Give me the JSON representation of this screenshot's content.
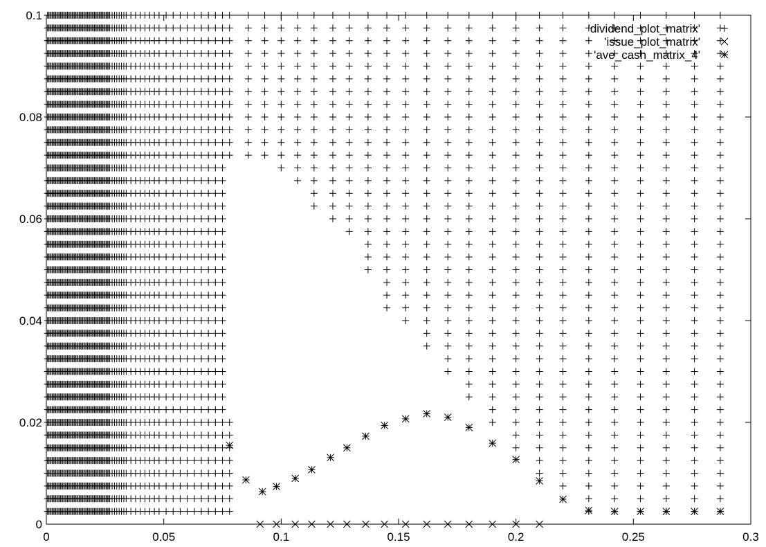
{
  "chart_data": {
    "type": "scatter",
    "title": "",
    "xlabel": "",
    "ylabel": "",
    "xlim": [
      0,
      0.3
    ],
    "ylim": [
      0,
      0.1
    ],
    "grid": false,
    "legend_position": "top-right",
    "x_ticks": [
      "0",
      "0.05",
      "0.1",
      "0.15",
      "0.2",
      "0.25",
      "0.3"
    ],
    "y_ticks": [
      "0",
      "0.02",
      "0.04",
      "0.06",
      "0.08",
      "0.1"
    ],
    "series": [
      {
        "name": "'dividend_plot_matrix'",
        "marker": "plus",
        "grid_y_values": [
          0.0025,
          0.005,
          0.0075,
          0.01,
          0.0125,
          0.015,
          0.0175,
          0.02,
          0.0225,
          0.025,
          0.0275,
          0.03,
          0.0325,
          0.035,
          0.0375,
          0.04,
          0.0425,
          0.045,
          0.0475,
          0.05,
          0.0525,
          0.055,
          0.0575,
          0.06,
          0.0625,
          0.065,
          0.0675,
          0.07,
          0.0725,
          0.075,
          0.0775,
          0.08,
          0.0825,
          0.085,
          0.0875,
          0.09,
          0.0925,
          0.095,
          0.0975,
          0.1
        ],
        "dense_x_values": [
          0.0005,
          0.001,
          0.0015,
          0.002,
          0.0025,
          0.003,
          0.0035,
          0.004,
          0.0045,
          0.005,
          0.0055,
          0.006,
          0.0065,
          0.007,
          0.0075,
          0.008,
          0.0085,
          0.009,
          0.0095,
          0.01,
          0.0105,
          0.011,
          0.0115,
          0.012,
          0.0125,
          0.013,
          0.0135,
          0.014,
          0.0145,
          0.015,
          0.0155,
          0.016,
          0.0165,
          0.017,
          0.0175,
          0.018,
          0.0185,
          0.019,
          0.0195,
          0.02,
          0.0205,
          0.021,
          0.0215,
          0.022,
          0.0225,
          0.023,
          0.0235,
          0.024,
          0.0245,
          0.025,
          0.0255,
          0.026,
          0.0265,
          0.027,
          0.028,
          0.029,
          0.03,
          0.031,
          0.032,
          0.033,
          0.034,
          0.036,
          0.038,
          0.04,
          0.042,
          0.044,
          0.046,
          0.048,
          0.051,
          0.054,
          0.057,
          0.06,
          0.063,
          0.066,
          0.069,
          0.072,
          0.075
        ],
        "columns": [
          {
            "x": 0.078,
            "y_min": 0.0025,
            "y_max": 0.02
          },
          {
            "x": 0.078,
            "y_min": 0.0725,
            "y_max": 0.1
          },
          {
            "x": 0.086,
            "y_min": 0.0725,
            "y_max": 0.1
          },
          {
            "x": 0.093,
            "y_min": 0.0725,
            "y_max": 0.1
          },
          {
            "x": 0.1,
            "y_min": 0.07,
            "y_max": 0.1
          },
          {
            "x": 0.107,
            "y_min": 0.0675,
            "y_max": 0.1
          },
          {
            "x": 0.114,
            "y_min": 0.0625,
            "y_max": 0.1
          },
          {
            "x": 0.122,
            "y_min": 0.06,
            "y_max": 0.1
          },
          {
            "x": 0.129,
            "y_min": 0.0575,
            "y_max": 0.1
          },
          {
            "x": 0.137,
            "y_min": 0.05,
            "y_max": 0.1
          },
          {
            "x": 0.145,
            "y_min": 0.0425,
            "y_max": 0.1
          },
          {
            "x": 0.153,
            "y_min": 0.04,
            "y_max": 0.1
          },
          {
            "x": 0.162,
            "y_min": 0.035,
            "y_max": 0.1
          },
          {
            "x": 0.171,
            "y_min": 0.03,
            "y_max": 0.1
          },
          {
            "x": 0.18,
            "y_min": 0.025,
            "y_max": 0.1
          },
          {
            "x": 0.19,
            "y_min": 0.02,
            "y_max": 0.1
          },
          {
            "x": 0.2,
            "y_min": 0.015,
            "y_max": 0.1
          },
          {
            "x": 0.21,
            "y_min": 0.01,
            "y_max": 0.1
          },
          {
            "x": 0.22,
            "y_min": 0.0075,
            "y_max": 0.1
          },
          {
            "x": 0.231,
            "y_min": 0.0025,
            "y_max": 0.1
          },
          {
            "x": 0.242,
            "y_min": 0.0025,
            "y_max": 0.1
          },
          {
            "x": 0.253,
            "y_min": 0.0025,
            "y_max": 0.1
          },
          {
            "x": 0.264,
            "y_min": 0.0025,
            "y_max": 0.1
          },
          {
            "x": 0.276,
            "y_min": 0.0025,
            "y_max": 0.1
          },
          {
            "x": 0.287,
            "y_min": 0.0025,
            "y_max": 0.1
          }
        ]
      },
      {
        "name": "'issue_plot_matrix'",
        "marker": "cross",
        "x": [
          0.091,
          0.098,
          0.106,
          0.113,
          0.121,
          0.128,
          0.136,
          0.144,
          0.153,
          0.162,
          0.171,
          0.18,
          0.19,
          0.2,
          0.21
        ],
        "y": [
          0,
          0,
          0,
          0,
          0,
          0,
          0,
          0,
          0,
          0,
          0,
          0,
          0,
          0,
          0
        ]
      },
      {
        "name": "'ave_cash_matrix_4'",
        "marker": "star",
        "x": [
          0.078,
          0.085,
          0.092,
          0.098,
          0.106,
          0.113,
          0.121,
          0.128,
          0.136,
          0.144,
          0.153,
          0.162,
          0.171,
          0.18,
          0.19,
          0.2,
          0.21,
          0.22,
          0.231,
          0.242,
          0.253,
          0.264,
          0.276,
          0.287
        ],
        "y": [
          0.0155,
          0.0087,
          0.0064,
          0.0074,
          0.009,
          0.0107,
          0.0131,
          0.015,
          0.0173,
          0.0194,
          0.0207,
          0.0217,
          0.021,
          0.019,
          0.0159,
          0.0127,
          0.0085,
          0.0049,
          0.0027,
          0.0025,
          0.0025,
          0.0025,
          0.0025,
          0.0025
        ]
      }
    ]
  }
}
